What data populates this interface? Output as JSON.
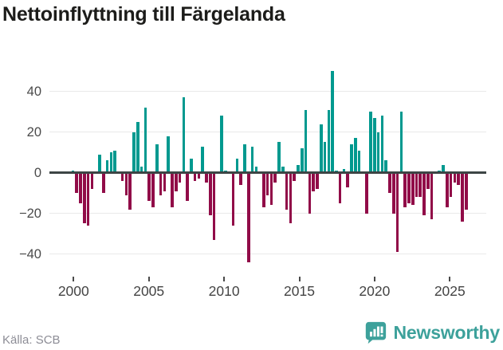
{
  "title": "Nettoinflyttning till Färgelanda",
  "source": "Källa: SCB",
  "brand": {
    "name": "Newsworthy"
  },
  "colors": {
    "positive": "#00998f",
    "negative": "#910c48",
    "axis": "#3d4545",
    "grid": "#e9e9e9",
    "brand_teal": "#3da19b"
  },
  "chart_data": {
    "type": "bar",
    "title": "Nettoinflyttning till Färgelanda",
    "period": {
      "start": "2000 Q1",
      "end": "2025 Q4",
      "frequency": "quarterly"
    },
    "xlabel": "",
    "ylabel": "",
    "ylim": [
      -50,
      55
    ],
    "y_ticks": [
      40,
      20,
      0,
      -20,
      -40
    ],
    "y_tick_labels": [
      "40",
      "20",
      "0",
      "−20",
      "−40"
    ],
    "x_tick_years": [
      2000,
      2005,
      2010,
      2015,
      2020,
      2025
    ],
    "x_tick_labels": [
      "2000",
      "2005",
      "2010",
      "2015",
      "2020",
      "2025"
    ],
    "grid": true,
    "legend": "none",
    "values": [
      1,
      -10,
      -15,
      -25,
      -26,
      -8,
      0,
      9,
      -10,
      6,
      10,
      11,
      0,
      -4,
      -11,
      -18,
      20,
      25,
      3,
      32,
      -14,
      -17,
      14,
      -11,
      -9,
      18,
      -17,
      -9,
      -5,
      37,
      -14,
      7,
      -4,
      -3,
      13,
      -5,
      -21,
      -33,
      0,
      28,
      1,
      0,
      -26,
      7,
      -6,
      14,
      -44,
      13,
      3,
      0,
      -17,
      -11,
      -16,
      -5,
      15,
      3,
      -18,
      -25,
      -4,
      4,
      12,
      31,
      -20,
      -9,
      -8,
      24,
      15,
      31,
      50,
      1,
      -15,
      2,
      -7,
      14,
      17,
      11,
      0,
      -20,
      30,
      27,
      20,
      28,
      6,
      -10,
      -20,
      -39,
      30,
      -17,
      -15,
      -16,
      -12,
      -12,
      -21,
      -8,
      -23,
      0,
      1,
      4,
      -17,
      -12,
      -5,
      -6,
      -24,
      -18
    ]
  }
}
